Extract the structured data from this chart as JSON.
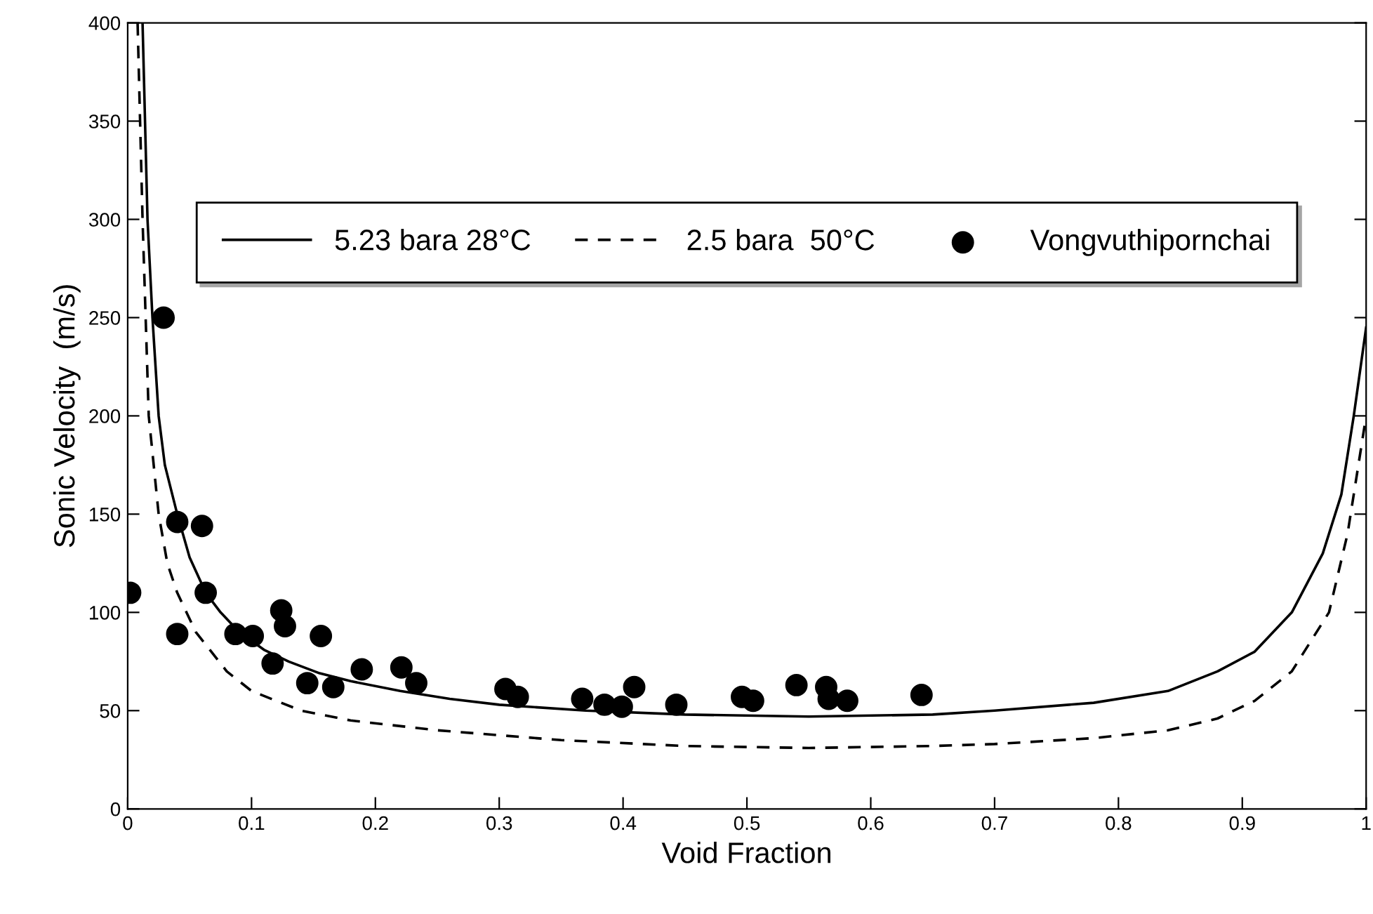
{
  "chart_data": {
    "type": "line",
    "xlabel": "Void Fraction",
    "ylabel": "Sonic Velocity  (m/s)",
    "xlim": [
      0,
      1
    ],
    "ylim": [
      0,
      400
    ],
    "xticks": [
      0,
      0.1,
      0.2,
      0.3,
      0.4,
      0.5,
      0.6,
      0.7,
      0.8,
      0.9,
      1
    ],
    "yticks": [
      0,
      50,
      100,
      150,
      200,
      250,
      300,
      350,
      400
    ],
    "grid": false,
    "legend": "top",
    "series": [
      {
        "name": "5.23 bara 28°C",
        "color": "#000000",
        "line_style": "solid",
        "marker": "none",
        "x": [
          0.012,
          0.016,
          0.02,
          0.025,
          0.03,
          0.04,
          0.05,
          0.063,
          0.075,
          0.09,
          0.11,
          0.13,
          0.155,
          0.18,
          0.22,
          0.26,
          0.3,
          0.37,
          0.45,
          0.55,
          0.65,
          0.7,
          0.78,
          0.84,
          0.88,
          0.91,
          0.94,
          0.965,
          0.98,
          0.99,
          1.0
        ],
        "values": [
          400,
          300,
          250,
          200,
          175,
          150,
          128,
          110,
          100,
          90,
          81,
          75,
          69,
          65,
          60,
          56,
          53,
          50,
          48,
          47,
          48,
          50,
          54,
          60,
          70,
          80,
          100,
          130,
          160,
          200,
          245
        ]
      },
      {
        "name": "2.5 bara  50°C",
        "color": "#000000",
        "line_style": "dashed",
        "marker": "none",
        "x": [
          0.008,
          0.012,
          0.017,
          0.025,
          0.032,
          0.04,
          0.055,
          0.08,
          0.1,
          0.14,
          0.18,
          0.25,
          0.35,
          0.45,
          0.55,
          0.65,
          0.7,
          0.78,
          0.84,
          0.88,
          0.91,
          0.94,
          0.97,
          0.985,
          0.995,
          1.0
        ],
        "values": [
          400,
          300,
          200,
          150,
          125,
          110,
          90,
          70,
          60,
          50,
          45,
          40,
          35,
          32,
          31,
          32,
          33,
          36,
          40,
          46,
          55,
          70,
          100,
          140,
          180,
          200
        ]
      },
      {
        "name": "Vongvuthipornchai",
        "type": "scatter",
        "color": "#000000",
        "marker": "circle",
        "x": [
          0.002,
          0.029,
          0.04,
          0.06,
          0.063,
          0.04,
          0.087,
          0.101,
          0.124,
          0.127,
          0.156,
          0.117,
          0.145,
          0.166,
          0.189,
          0.221,
          0.233,
          0.305,
          0.315,
          0.367,
          0.385,
          0.399,
          0.409,
          0.443,
          0.496,
          0.505,
          0.54,
          0.564,
          0.566,
          0.581,
          0.641
        ],
        "values": [
          110,
          250,
          146,
          144,
          110,
          89,
          89,
          88,
          101,
          93,
          88,
          74,
          64,
          62,
          71,
          72,
          64,
          61,
          57,
          56,
          53,
          52,
          62,
          53,
          57,
          55,
          63,
          62,
          56,
          55,
          58
        ]
      }
    ]
  }
}
